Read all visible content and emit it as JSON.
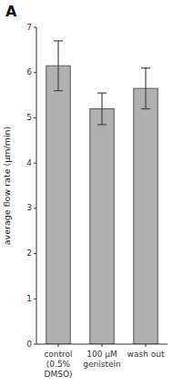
{
  "chart_data": {
    "type": "bar",
    "title": "A",
    "categories": [
      "control\n(0.5%\nDMSO)",
      "100 μM\ngenistein",
      "wash out"
    ],
    "values": [
      6.15,
      5.2,
      5.65
    ],
    "errors": [
      0.55,
      0.35,
      0.45
    ],
    "color": "#b0b0b0",
    "ylabel": "average flow rate (μm/min)",
    "ylim": [
      0,
      7
    ],
    "yticks": [
      0,
      1,
      2,
      3,
      4,
      5,
      6,
      7
    ],
    "grid": false
  }
}
